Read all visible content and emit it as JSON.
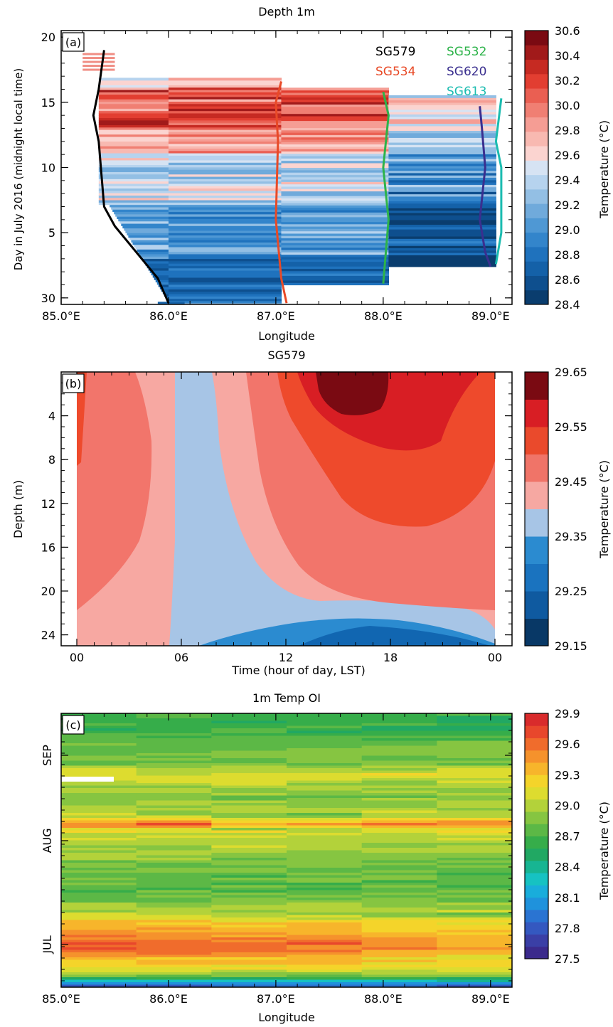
{
  "chart_data": [
    {
      "panel": "(a)",
      "type": "heatmap",
      "title": "Depth 1m",
      "xlabel": "Longitude",
      "ylabel": "Day in July 2016 (midnight local time)",
      "xlim": [
        85.0,
        89.2
      ],
      "ylim": [
        29.5,
        20.5
      ],
      "x_ticks": [
        "85.0°E",
        "86.0°E",
        "87.0°E",
        "88.0°E",
        "89.0°E"
      ],
      "y_ticks": [
        "30",
        "5",
        "10",
        "15",
        "20"
      ],
      "colorbar": {
        "label": "Temperature (°C)",
        "ticks": [
          "28.4",
          "28.6",
          "28.8",
          "29.0",
          "29.2",
          "29.4",
          "29.6",
          "29.8",
          "30.0",
          "30.2",
          "30.4",
          "30.6"
        ],
        "colors": [
          "#0a3d6e",
          "#0e4f8e",
          "#1461a8",
          "#1f72bd",
          "#3385cb",
          "#4f98d4",
          "#70aadb",
          "#93bfe4",
          "#b6d3ee",
          "#d6e3f3",
          "#fbd4d0",
          "#f8b9b1",
          "#f59d94",
          "#f07f73",
          "#ea5f52",
          "#e23e31",
          "#c62a22",
          "#a11a1a",
          "#7a0a12"
        ]
      },
      "legend": [
        "SG579",
        "SG532",
        "SG534",
        "SG620",
        "SG613"
      ],
      "legend_colors": [
        "#000000",
        "#2db34a",
        "#e84a27",
        "#3a2f8f",
        "#1bbcb0"
      ],
      "glider_tracks": [
        {
          "name": "SG579",
          "color": "#000000",
          "points": [
            [
              86.0,
              29.6
            ],
            [
              85.9,
              31.5
            ],
            [
              85.5,
              35.5
            ],
            [
              85.4,
              37.0
            ],
            [
              85.35,
              42.0
            ],
            [
              85.3,
              44.0
            ],
            [
              85.35,
              46.0
            ],
            [
              85.4,
              49.0
            ]
          ]
        },
        {
          "name": "SG534",
          "color": "#e84a27",
          "points": [
            [
              87.1,
              29.6
            ],
            [
              87.05,
              31.5
            ],
            [
              87.0,
              36.0
            ],
            [
              87.02,
              42.0
            ],
            [
              87.0,
              45.0
            ],
            [
              87.05,
              46.6
            ]
          ]
        },
        {
          "name": "SG532",
          "color": "#2db34a",
          "points": [
            [
              88.0,
              31.1
            ],
            [
              88.05,
              36.0
            ],
            [
              88.0,
              40.0
            ],
            [
              88.05,
              44.0
            ],
            [
              88.0,
              45.8
            ]
          ]
        },
        {
          "name": "SG620",
          "color": "#3a2f8f",
          "points": [
            [
              89.0,
              32.4
            ],
            [
              88.95,
              33.5
            ],
            [
              88.9,
              36.0
            ],
            [
              88.95,
              40.0
            ],
            [
              88.92,
              43.0
            ],
            [
              88.9,
              44.7
            ]
          ]
        },
        {
          "name": "SG613",
          "color": "#1bbcb0",
          "points": [
            [
              89.05,
              32.6
            ],
            [
              89.1,
              35.0
            ],
            [
              89.1,
              40.0
            ],
            [
              89.05,
              42.0
            ],
            [
              89.1,
              45.3
            ]
          ]
        }
      ]
    },
    {
      "panel": "(b)",
      "type": "heatmap",
      "title": "SG579",
      "xlabel": "Time (hour of day, LST)",
      "ylabel": "Depth (m)",
      "xlim": [
        0,
        24
      ],
      "ylim": [
        25,
        0
      ],
      "x_ticks": [
        "00",
        "06",
        "12",
        "18",
        "00"
      ],
      "y_ticks": [
        "4",
        "8",
        "12",
        "16",
        "20",
        "24"
      ],
      "colorbar": {
        "label": "Temperature (°C)",
        "ticks": [
          "29.15",
          "29.25",
          "29.35",
          "29.45",
          "29.55",
          "29.65"
        ],
        "colors": [
          "#083866",
          "#0f5aa0",
          "#1a73bf",
          "#2b8bd0",
          "#a7c5e6",
          "#f6a8a2",
          "#f07468",
          "#ea4a2c",
          "#d81e24",
          "#7a0a12"
        ]
      }
    },
    {
      "panel": "(c)",
      "type": "heatmap",
      "title": "1m Temp OI",
      "xlabel": "Longitude",
      "ylabel": "",
      "xlim": [
        85.0,
        89.2
      ],
      "x_ticks": [
        "85.0°E",
        "86.0°E",
        "87.0°E",
        "88.0°E",
        "89.0°E"
      ],
      "y_ticks": [
        "JUL",
        "AUG",
        "SEP"
      ],
      "colorbar": {
        "label": "Temperature (°C)",
        "ticks": [
          "27.5",
          "27.8",
          "28.1",
          "28.4",
          "28.7",
          "29.0",
          "29.3",
          "29.6",
          "29.9"
        ],
        "colors": [
          "#3b2a8c",
          "#3a3fa6",
          "#3458c0",
          "#2a74d2",
          "#1f92dc",
          "#19addb",
          "#16c2c2",
          "#17b592",
          "#21a863",
          "#36ad4a",
          "#5cb846",
          "#86c541",
          "#b3d23a",
          "#dddc2f",
          "#f4d42a",
          "#f7b52b",
          "#f5922c",
          "#f06c2c",
          "#e8472c",
          "#d92b2c"
        ]
      }
    }
  ]
}
